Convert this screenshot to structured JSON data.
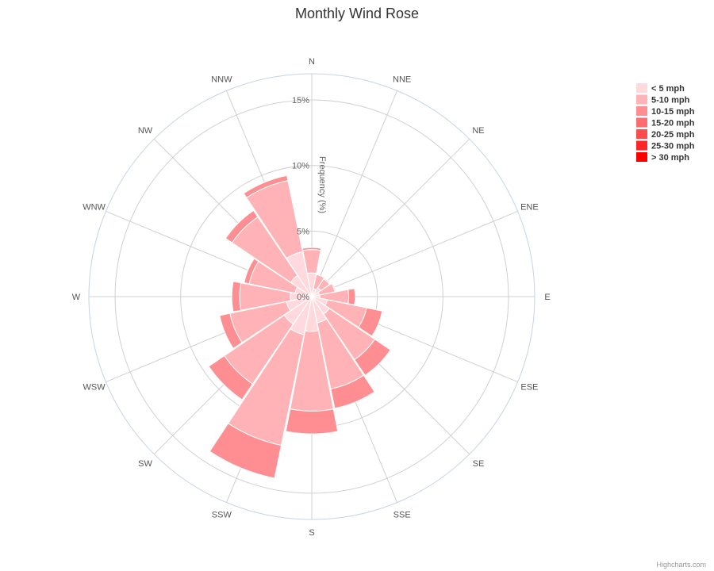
{
  "chart_data": {
    "type": "wind-rose",
    "title": "Monthly Wind Rose",
    "radial_axis_title": "Frequency (%)",
    "radial_ticks": [
      "0%",
      "5%",
      "10%",
      "15%"
    ],
    "radial_max": 17,
    "stacking": "normal",
    "legend_placement": "top-right",
    "directions": [
      "N",
      "NNE",
      "NE",
      "ENE",
      "E",
      "ESE",
      "SE",
      "SSE",
      "S",
      "SSW",
      "SW",
      "WSW",
      "W",
      "WNW",
      "NW",
      "NNW"
    ],
    "series": [
      {
        "name": "< 5 mph",
        "color": "#ffd9dc",
        "values": [
          1.81,
          0.62,
          0.82,
          0.59,
          0.62,
          1.22,
          1.61,
          2.04,
          2.66,
          2.96,
          2.53,
          1.97,
          1.64,
          1.32,
          1.94,
          3.5
        ]
      },
      {
        "name": "5-10 mph",
        "color": "#ffb3b6",
        "values": [
          1.78,
          1.09,
          0.82,
          1.22,
          2.2,
          3.05,
          4.2,
          5.15,
          6.07,
          8.62,
          5.52,
          4.4,
          3.86,
          3.55,
          5.4,
          5.54
        ]
      },
      {
        "name": "10-15 mph",
        "color": "#ff8e92",
        "values": [
          0.16,
          0.0,
          0.07,
          0.07,
          0.49,
          1.22,
          1.44,
          1.51,
          1.74,
          2.56,
          1.44,
          0.8,
          0.6,
          0.4,
          0.59,
          0.39
        ]
      },
      {
        "name": "15-20 mph",
        "color": "#ff6b6f",
        "values": [
          0.0,
          0.0,
          0.0,
          0.0,
          0.0,
          0.0,
          0.0,
          0.0,
          0.0,
          0.0,
          0.0,
          0.0,
          0.0,
          0.0,
          0.0,
          0.0
        ]
      },
      {
        "name": "20-25 mph",
        "color": "#ff4a4e",
        "values": [
          0.0,
          0.0,
          0.0,
          0.0,
          0.0,
          0.0,
          0.0,
          0.0,
          0.0,
          0.0,
          0.0,
          0.0,
          0.0,
          0.0,
          0.0,
          0.0
        ]
      },
      {
        "name": "25-30 mph",
        "color": "#ff2528",
        "values": [
          0.0,
          0.0,
          0.0,
          0.0,
          0.0,
          0.0,
          0.0,
          0.0,
          0.0,
          0.0,
          0.0,
          0.0,
          0.0,
          0.0,
          0.0,
          0.0
        ]
      },
      {
        "name": "> 30 mph",
        "color": "#ff0000",
        "values": [
          0.0,
          0.0,
          0.0,
          0.0,
          0.0,
          0.0,
          0.0,
          0.0,
          0.0,
          0.0,
          0.0,
          0.0,
          0.0,
          0.0,
          0.0,
          0.0
        ]
      }
    ]
  },
  "credits": "Highcharts.com"
}
